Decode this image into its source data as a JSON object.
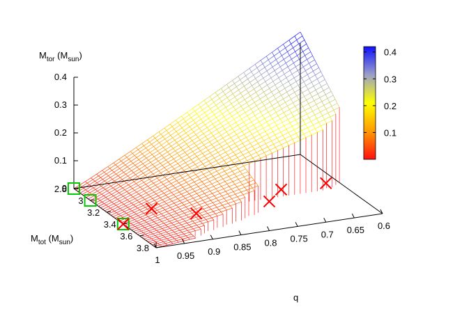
{
  "chart_data": {
    "type": "surface3d",
    "axes": {
      "z": {
        "label_main": "M",
        "label_sub": "tor",
        "label_unit_main": "M",
        "label_unit_sub": "sun",
        "ticks": [
          "0",
          "0.1",
          "0.2",
          "0.3",
          "0.4"
        ],
        "range": [
          0,
          0.4
        ]
      },
      "y": {
        "label_main": "M",
        "label_sub": "tot",
        "label_unit_main": "M",
        "label_unit_sub": "sun",
        "ticks": [
          "2.8",
          "3",
          "3.2",
          "3.4",
          "3.6",
          "3.8"
        ],
        "range": [
          2.8,
          3.8
        ]
      },
      "x": {
        "label": "q",
        "ticks": [
          "1",
          "0.95",
          "0.9",
          "0.85",
          "0.8",
          "0.75",
          "0.7",
          "0.65",
          "0.6"
        ],
        "range": [
          1,
          0.6
        ]
      }
    },
    "colorbar": {
      "ticks": [
        "0.1",
        "0.2",
        "0.3",
        "0.4"
      ],
      "range": [
        0,
        0.42
      ],
      "colors": [
        "#ff1010",
        "#ff9a00",
        "#ffff00",
        "#9aa0c8",
        "#1010ff"
      ]
    },
    "markers": {
      "cross_color": "#ff0000",
      "square_color": "#00cc00",
      "crosses": [
        {
          "q": 0.8,
          "Mtot": 3.8,
          "Mtor": 0.105
        },
        {
          "q": 0.7,
          "Mtot": 3.8,
          "Mtor": 0.14
        },
        {
          "q": 0.75,
          "Mtot": 3.6,
          "Mtor": 0.09
        },
        {
          "q": 0.9,
          "Mtot": 3.6,
          "Mtor": 0.05
        },
        {
          "q": 0.95,
          "Mtot": 3.4,
          "Mtor": 0.04
        },
        {
          "q": 1.0,
          "Mtot": 3.4,
          "Mtor": 0.0
        }
      ],
      "squares": [
        {
          "q": 1.0,
          "Mtot": 2.8,
          "Mtor": 0.0
        },
        {
          "q": 1.0,
          "Mtot": 3.0,
          "Mtor": 0.0
        },
        {
          "q": 1.0,
          "Mtot": 3.4,
          "Mtor": 0.0
        }
      ]
    }
  }
}
